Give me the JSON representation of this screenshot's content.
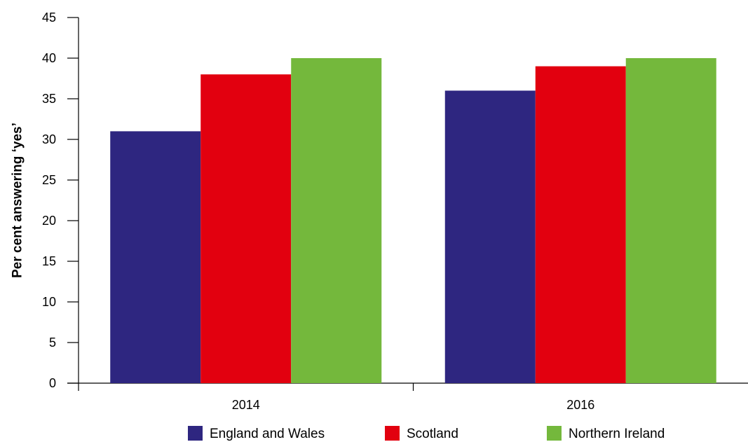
{
  "chart_data": {
    "type": "bar",
    "title": "",
    "xlabel": "",
    "ylabel": "Per cent answering ‘yes’",
    "ylim": [
      0,
      45
    ],
    "yticks": [
      0,
      5,
      10,
      15,
      20,
      25,
      30,
      35,
      40,
      45
    ],
    "categories": [
      "2014",
      "2016"
    ],
    "series": [
      {
        "name": "England and Wales",
        "color": "#2e2680",
        "values": [
          31,
          36
        ]
      },
      {
        "name": "Scotland",
        "color": "#e2000f",
        "values": [
          38,
          39
        ]
      },
      {
        "name": "Northern Ireland",
        "color": "#74b83c",
        "values": [
          40,
          40
        ]
      }
    ],
    "legend_position": "bottom",
    "grid": false
  }
}
